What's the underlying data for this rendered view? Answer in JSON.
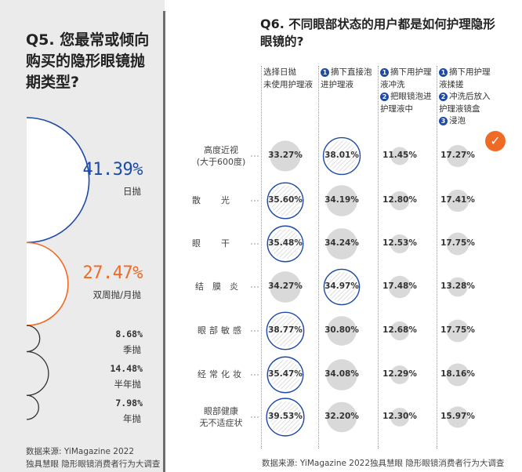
{
  "q5": {
    "title_num": "Q5.",
    "title_text": "您最常或倾向购买的隐形眼镜抛期类型?",
    "source_line1": "数据来源: YiMagazine 2022",
    "source_line2": "独具慧眼 隐形眼镜消费者行为大调查"
  },
  "q6": {
    "title_num": "Q6.",
    "title_text": "不同眼部状态的用户都是如何护理隐形眼镜的?",
    "source": "数据来源: YiMagazine 2022独具慧眼 隐形眼镜消费者行为大调查"
  },
  "colors": {
    "blue": "#1e4aa8",
    "orange": "#ef6a25",
    "dark": "#333333",
    "bubble": "#d9d9d9"
  },
  "chart_data": [
    {
      "type": "pie",
      "title": "Q5. 您最常或倾向购买的隐形眼镜抛期类型?",
      "categories": [
        "日抛",
        "双周抛/月抛",
        "季抛",
        "半年抛",
        "年抛"
      ],
      "values": [
        41.39,
        27.47,
        8.68,
        14.48,
        7.98
      ],
      "labels": [
        "41.39%",
        "27.47%",
        "8.68%",
        "14.48%",
        "7.98%"
      ],
      "colors": [
        "#1e4aa8",
        "#ef6a25",
        "#333333",
        "#333333",
        "#333333"
      ]
    },
    {
      "type": "table",
      "title": "Q6. 不同眼部状态的用户都是如何护理隐形眼镜的?",
      "columns": [
        {
          "items": [
            {
              "n": "",
              "t": "选择日抛"
            },
            {
              "n": "",
              "t": "未使用护理液"
            }
          ]
        },
        {
          "items": [
            {
              "n": "1",
              "t": "摘下直接泡"
            },
            {
              "n": "",
              "t": "进护理液"
            }
          ]
        },
        {
          "items": [
            {
              "n": "1",
              "t": "摘下用护理"
            },
            {
              "n": "",
              "t": "液冲洗"
            },
            {
              "n": "2",
              "t": "把眼镜泡进"
            },
            {
              "n": "",
              "t": "护理液中"
            }
          ]
        },
        {
          "items": [
            {
              "n": "1",
              "t": "摘下用护理"
            },
            {
              "n": "",
              "t": "液揉搓"
            },
            {
              "n": "2",
              "t": "冲洗后放入"
            },
            {
              "n": "",
              "t": "护理液镜盒"
            },
            {
              "n": "3",
              "t": "浸泡"
            }
          ]
        }
      ],
      "rows": [
        {
          "label": "高度近视",
          "sub": "(大于600度)",
          "values": [
            33.27,
            38.01,
            11.45,
            17.27
          ],
          "labels": [
            "33.27%",
            "38.01%",
            "11.45%",
            "17.27%"
          ],
          "highlight": 1,
          "checked": true
        },
        {
          "label": "散光",
          "sub": "",
          "values": [
            35.6,
            34.19,
            12.8,
            17.41
          ],
          "labels": [
            "35.60%",
            "34.19%",
            "12.80%",
            "17.41%"
          ],
          "highlight": 0,
          "checked": false
        },
        {
          "label": "眼干",
          "sub": "",
          "values": [
            35.48,
            34.24,
            12.53,
            17.75
          ],
          "labels": [
            "35.48%",
            "34.24%",
            "12.53%",
            "17.75%"
          ],
          "highlight": 0,
          "checked": false
        },
        {
          "label": "结膜炎",
          "sub": "",
          "values": [
            34.27,
            34.97,
            17.48,
            13.28
          ],
          "labels": [
            "34.27%",
            "34.97%",
            "17.48%",
            "13.28%"
          ],
          "highlight": 1,
          "checked": false
        },
        {
          "label": "眼部敏感",
          "sub": "",
          "values": [
            38.77,
            30.8,
            12.68,
            17.75
          ],
          "labels": [
            "38.77%",
            "30.80%",
            "12.68%",
            "17.75%"
          ],
          "highlight": 0,
          "checked": false
        },
        {
          "label": "经常化妆",
          "sub": "",
          "values": [
            35.47,
            34.08,
            12.29,
            18.16
          ],
          "labels": [
            "35.47%",
            "34.08%",
            "12.29%",
            "18.16%"
          ],
          "highlight": 0,
          "checked": false
        },
        {
          "label": "眼部健康",
          "sub": "无不适症状",
          "values": [
            39.53,
            32.2,
            12.3,
            15.97
          ],
          "labels": [
            "39.53%",
            "32.20%",
            "12.30%",
            "15.97%"
          ],
          "highlight": 0,
          "checked": false
        }
      ]
    }
  ]
}
